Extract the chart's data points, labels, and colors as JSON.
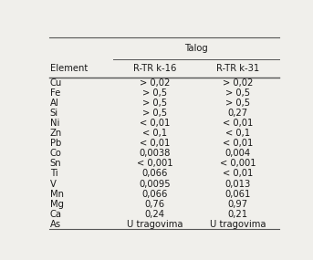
{
  "header_group": "Talog",
  "col1_header": "Element",
  "col2_header": "R-TR k-16",
  "col3_header": "R-TR k-31",
  "rows": [
    [
      "Cu",
      "> 0,02",
      "> 0,02"
    ],
    [
      "Fe",
      "> 0,5",
      "> 0,5"
    ],
    [
      "Al",
      "> 0,5",
      "> 0,5"
    ],
    [
      "Si",
      "> 0,5",
      "0,27"
    ],
    [
      "Ni",
      "< 0,01",
      "< 0,01"
    ],
    [
      "Zn",
      "< 0,1",
      "< 0,1"
    ],
    [
      "Pb",
      "< 0,01",
      "< 0,01"
    ],
    [
      "Co",
      "0,0038",
      "0,004"
    ],
    [
      "Sn",
      "< 0,001",
      "< 0,001"
    ],
    [
      "Ti",
      "0,066",
      "< 0,01"
    ],
    [
      "V",
      "0,0095",
      "0,013"
    ],
    [
      "Mn",
      "0,066",
      "0,061"
    ],
    [
      "Mg",
      "0,76",
      "0,97"
    ],
    [
      "Ca",
      "0,24",
      "0,21"
    ],
    [
      "As",
      "U tragovima",
      "U tragovima"
    ]
  ],
  "bg_color": "#f0efeb",
  "text_color": "#1a1a1a",
  "font_size": 7.2,
  "line_color": "#555555"
}
